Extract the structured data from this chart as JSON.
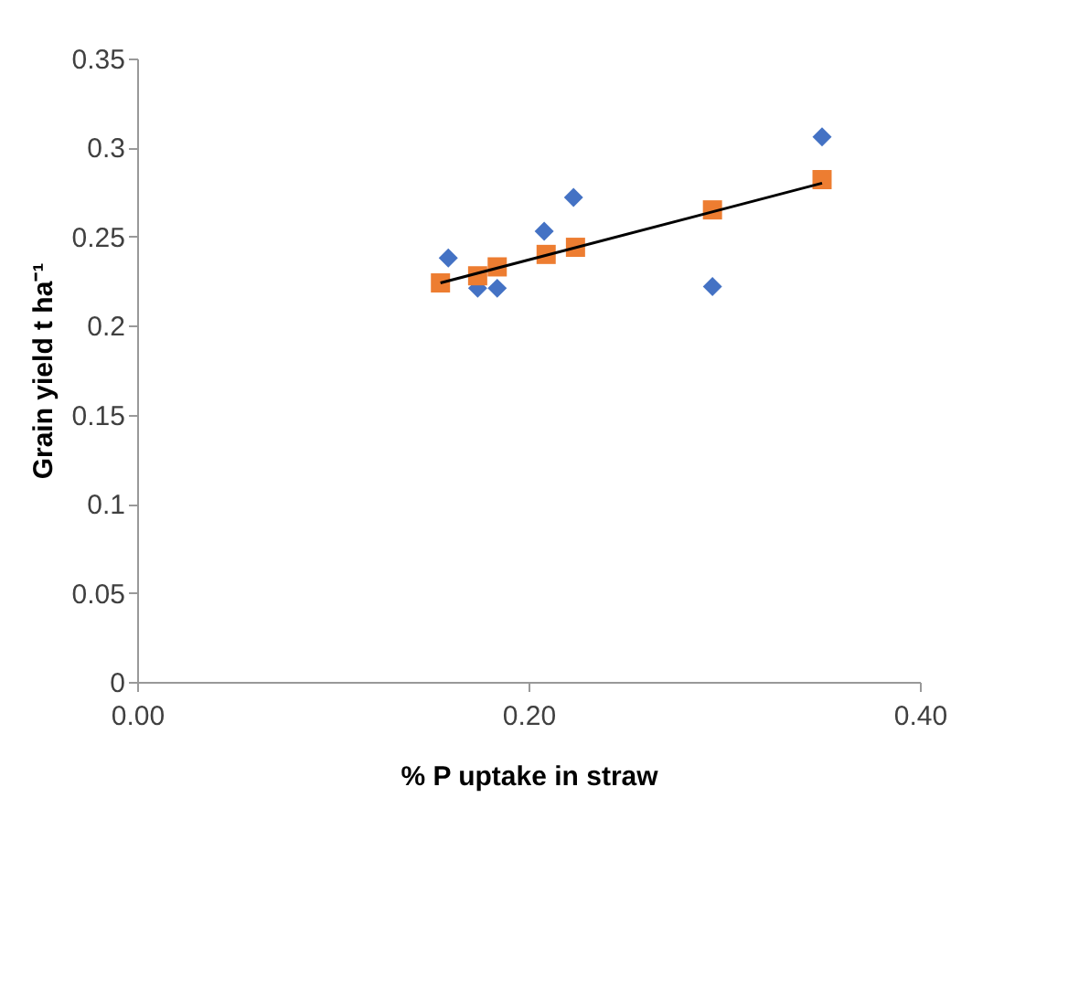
{
  "chart_data": {
    "type": "scatter",
    "xlabel": "% P uptake in straw",
    "ylabel": "Grain yield t ha⁻¹",
    "xlim": [
      0,
      0.4
    ],
    "ylim": [
      0,
      0.35
    ],
    "xticks": [
      {
        "value": 0,
        "label": "0.00"
      },
      {
        "value": 0.2,
        "label": "0.20"
      },
      {
        "value": 0.4,
        "label": "0.40"
      }
    ],
    "yticks": [
      0,
      0.05,
      0.1,
      0.15,
      0.2,
      0.25,
      0.3,
      0.35
    ],
    "grid": false,
    "series": [
      {
        "marker": "diamond",
        "color": "#4472c4",
        "x": [
          0.159,
          0.174,
          0.184,
          0.208,
          0.223,
          0.294,
          0.35
        ],
        "values": [
          0.238,
          0.221,
          0.221,
          0.253,
          0.272,
          0.222,
          0.306
        ]
      },
      {
        "marker": "square",
        "color": "#ed7d31",
        "x": [
          0.155,
          0.174,
          0.184,
          0.209,
          0.224,
          0.294,
          0.35
        ],
        "values": [
          0.224,
          0.228,
          0.233,
          0.24,
          0.244,
          0.265,
          0.282
        ]
      },
      {
        "type": "line",
        "line_style": "solid",
        "color": "#000000",
        "x": [
          0.155,
          0.35
        ],
        "values": [
          0.224,
          0.28
        ]
      }
    ]
  }
}
